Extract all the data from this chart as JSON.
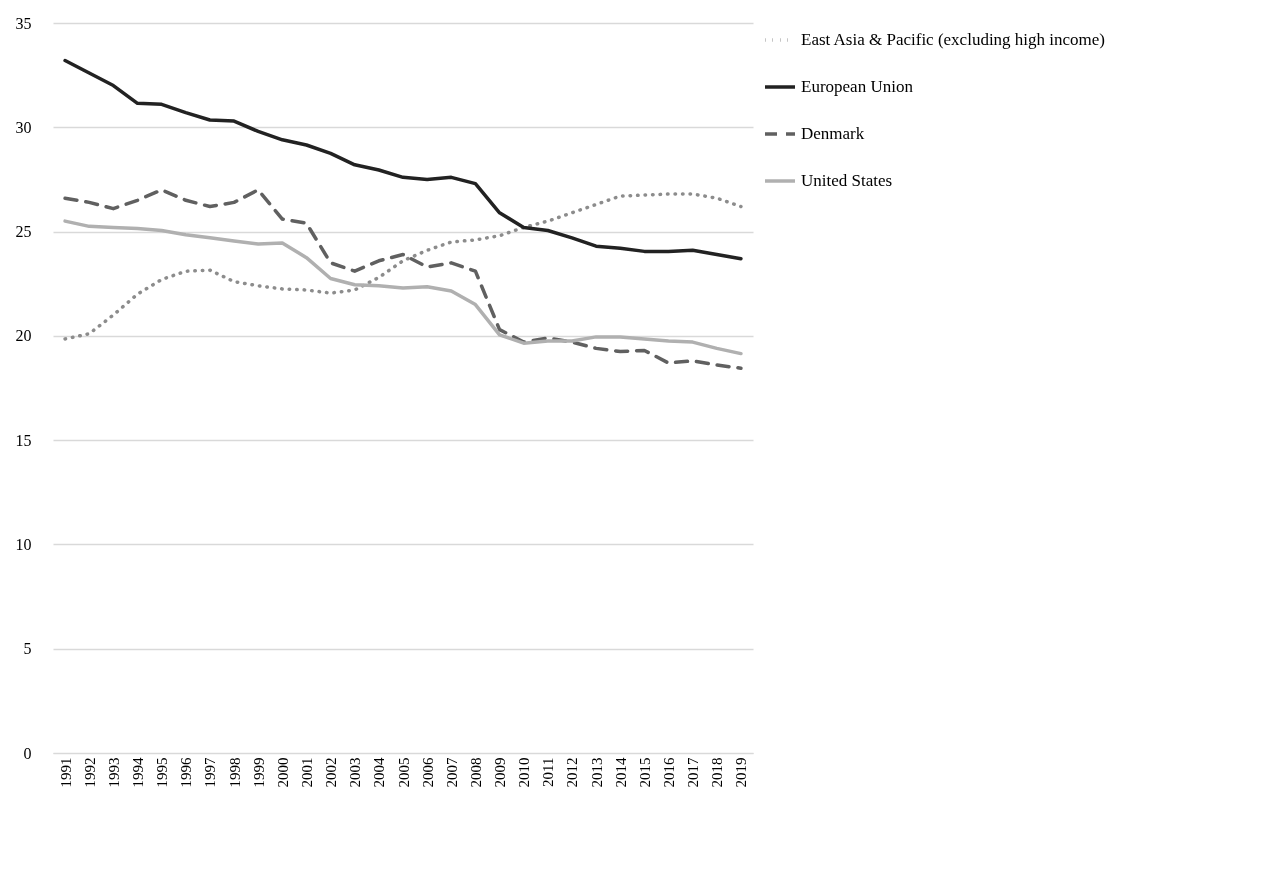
{
  "chart_data": {
    "type": "line",
    "categories": [
      "1991",
      "1992",
      "1993",
      "1994",
      "1995",
      "1996",
      "1997",
      "1998",
      "1999",
      "2000",
      "2001",
      "2002",
      "2003",
      "2004",
      "2005",
      "2006",
      "2007",
      "2008",
      "2009",
      "2010",
      "2011",
      "2012",
      "2013",
      "2014",
      "2015",
      "2016",
      "2017",
      "2018",
      "2019"
    ],
    "series": [
      {
        "name": "East Asia & Pacific (excluding high income)",
        "color": "#8c8c8c",
        "line_style": "dotted",
        "values": [
          19.85,
          20.1,
          21.0,
          22.0,
          22.7,
          23.1,
          23.15,
          22.6,
          22.4,
          22.25,
          22.2,
          22.05,
          22.2,
          22.8,
          23.6,
          24.1,
          24.5,
          24.6,
          24.8,
          25.2,
          25.5,
          25.9,
          26.3,
          26.7,
          26.75,
          26.8,
          26.8,
          26.6,
          26.2
        ]
      },
      {
        "name": "European Union",
        "color": "#222222",
        "line_style": "solid",
        "values": [
          33.2,
          32.6,
          32.0,
          31.15,
          31.1,
          30.7,
          30.35,
          30.3,
          29.8,
          29.4,
          29.15,
          28.75,
          28.2,
          27.95,
          27.6,
          27.5,
          27.6,
          27.3,
          25.9,
          25.2,
          25.05,
          24.7,
          24.3,
          24.2,
          24.05,
          24.05,
          24.1,
          23.9,
          23.7
        ]
      },
      {
        "name": "Denmark",
        "color": "#606060",
        "line_style": "dashed",
        "values": [
          26.6,
          26.4,
          26.1,
          26.5,
          27.0,
          26.5,
          26.2,
          26.4,
          27.0,
          25.6,
          25.4,
          23.5,
          23.1,
          23.6,
          23.9,
          23.3,
          23.5,
          23.1,
          20.3,
          19.7,
          19.9,
          19.7,
          19.4,
          19.25,
          19.3,
          18.7,
          18.8,
          18.6,
          18.45
        ]
      },
      {
        "name": "United States",
        "color": "#b0b0b0",
        "line_style": "solid",
        "values": [
          25.5,
          25.25,
          25.2,
          25.15,
          25.05,
          24.85,
          24.7,
          24.55,
          24.4,
          24.45,
          23.75,
          22.75,
          22.45,
          22.4,
          22.3,
          22.35,
          22.15,
          21.5,
          20.05,
          19.65,
          19.75,
          19.75,
          19.95,
          19.95,
          19.85,
          19.75,
          19.7,
          19.4,
          19.15
        ]
      }
    ],
    "ylim": [
      0,
      35
    ],
    "yticks": [
      0,
      5,
      10,
      15,
      20,
      25,
      30,
      35
    ],
    "grid": "y",
    "legend": "right",
    "marker": "none"
  }
}
